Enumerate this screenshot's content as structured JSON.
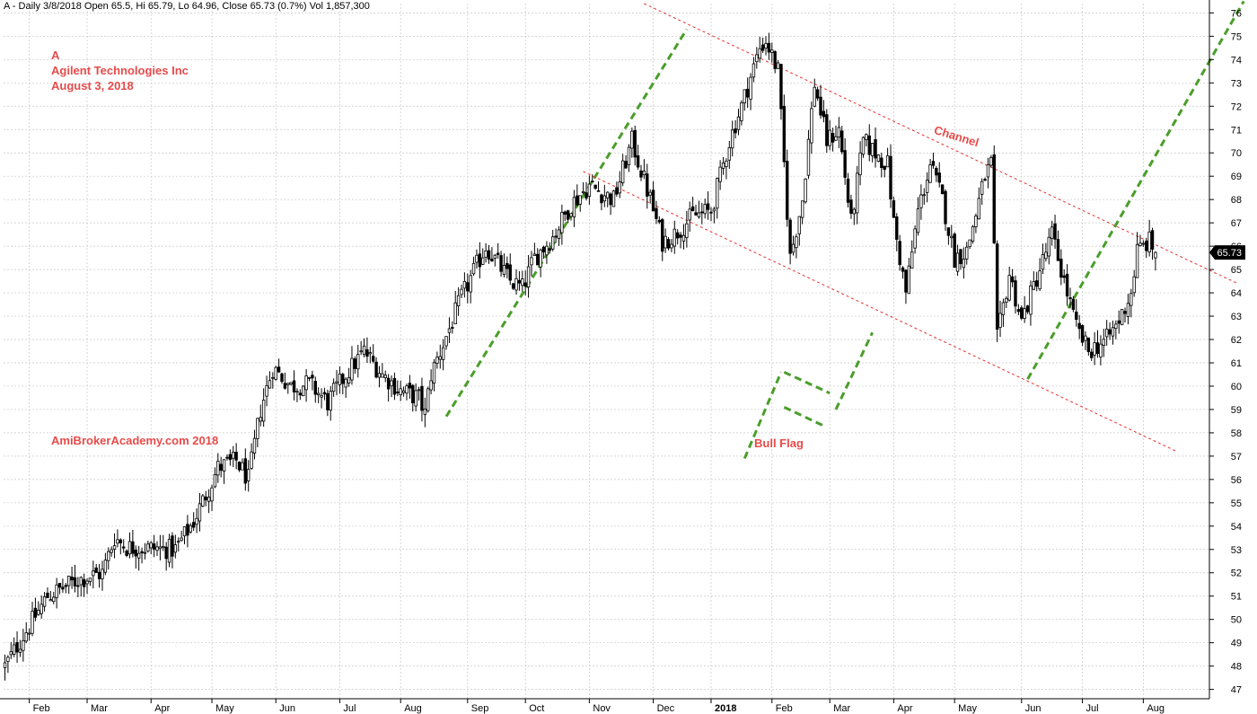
{
  "header": "A - Daily 3/8/2018 Open 65.5, Hi 65.79, Lo 64.96, Close 65.73 (0.7%) Vol 1,857,300",
  "notes": {
    "ticker": "A",
    "company": "Agilent Technologies Inc",
    "date": "August 3, 2018",
    "watermark": "AmiBrokerAcademy.com  2018"
  },
  "annotations": {
    "channel": "Channel",
    "bull_flag": "Bull Flag"
  },
  "last_price_label": "65.73",
  "colors": {
    "annotation_text": "#e84a4a",
    "trend_line": "#4a9e2a",
    "channel_line": "#e83030",
    "candle": "#000000",
    "grid": "#c8c8c8"
  },
  "chart_data": {
    "type": "candlestick",
    "ylim": [
      46.6,
      76.4
    ],
    "y_ticks": [
      47,
      48,
      49,
      50,
      51,
      52,
      53,
      54,
      55,
      56,
      57,
      58,
      59,
      60,
      61,
      62,
      63,
      64,
      65,
      66,
      67,
      68,
      69,
      70,
      71,
      72,
      73,
      74,
      75,
      76
    ],
    "x_months": [
      {
        "label": "Feb",
        "bar": 8
      },
      {
        "label": "Mar",
        "bar": 27
      },
      {
        "label": "Apr",
        "bar": 48
      },
      {
        "label": "May",
        "bar": 68
      },
      {
        "label": "Jun",
        "bar": 89
      },
      {
        "label": "Jul",
        "bar": 110
      },
      {
        "label": "Aug",
        "bar": 130
      },
      {
        "label": "Sep",
        "bar": 152
      },
      {
        "label": "Oct",
        "bar": 171
      },
      {
        "label": "Nov",
        "bar": 192
      },
      {
        "label": "Dec",
        "bar": 213
      },
      {
        "label": "2018",
        "bar": 232
      },
      {
        "label": "Feb",
        "bar": 252
      },
      {
        "label": "Mar",
        "bar": 271
      },
      {
        "label": "Apr",
        "bar": 292
      },
      {
        "label": "May",
        "bar": 312
      },
      {
        "label": "Jun",
        "bar": 334
      },
      {
        "label": "Jul",
        "bar": 354
      },
      {
        "label": "Aug",
        "bar": 374
      }
    ],
    "price_path": [
      [
        0,
        48
      ],
      [
        7,
        49.5
      ],
      [
        14,
        51
      ],
      [
        24,
        51.7
      ],
      [
        32,
        52
      ],
      [
        36,
        53.5
      ],
      [
        40,
        53.1
      ],
      [
        56,
        53
      ],
      [
        62,
        54.2
      ],
      [
        70,
        56.5
      ],
      [
        76,
        56.8
      ],
      [
        80,
        56
      ],
      [
        84,
        59
      ],
      [
        88,
        60.8
      ],
      [
        94,
        60
      ],
      [
        100,
        60.1
      ],
      [
        106,
        59.3
      ],
      [
        112,
        60.5
      ],
      [
        118,
        61.5
      ],
      [
        124,
        60.5
      ],
      [
        130,
        59.8
      ],
      [
        136,
        59.5
      ],
      [
        138,
        58.8
      ],
      [
        140,
        60.5
      ],
      [
        144,
        61.8
      ],
      [
        150,
        63.8
      ],
      [
        158,
        66
      ],
      [
        166,
        64.5
      ],
      [
        170,
        64.2
      ],
      [
        174,
        65.5
      ],
      [
        180,
        66.4
      ],
      [
        186,
        67.8
      ],
      [
        192,
        68.6
      ],
      [
        200,
        68
      ],
      [
        206,
        70.5
      ],
      [
        212,
        68
      ],
      [
        216,
        66.2
      ],
      [
        220,
        66.5
      ],
      [
        226,
        67.3
      ],
      [
        232,
        67.5
      ],
      [
        238,
        70.5
      ],
      [
        242,
        72
      ],
      [
        248,
        74.5
      ],
      [
        250,
        74.8
      ],
      [
        254,
        73.5
      ],
      [
        258,
        65.5
      ],
      [
        262,
        68
      ],
      [
        266,
        73
      ],
      [
        270,
        70.5
      ],
      [
        274,
        71
      ],
      [
        278,
        67
      ],
      [
        282,
        70.5
      ],
      [
        286,
        70
      ],
      [
        290,
        69.5
      ],
      [
        292,
        67
      ],
      [
        296,
        64
      ],
      [
        300,
        67.5
      ],
      [
        304,
        69.5
      ],
      [
        308,
        68
      ],
      [
        312,
        65.5
      ],
      [
        316,
        65.8
      ],
      [
        322,
        69
      ],
      [
        324,
        69.5
      ],
      [
        326,
        62
      ],
      [
        330,
        64.8
      ],
      [
        334,
        62.8
      ],
      [
        340,
        65
      ],
      [
        344,
        66.5
      ],
      [
        348,
        64.5
      ],
      [
        352,
        62.5
      ],
      [
        356,
        61.5
      ],
      [
        362,
        62
      ],
      [
        366,
        62.8
      ],
      [
        370,
        64
      ],
      [
        372,
        65.8
      ],
      [
        376,
        66.2
      ],
      [
        378,
        65.73
      ]
    ],
    "series": [
      {
        "name": "",
        "data": []
      }
    ],
    "drawn_lines": [
      {
        "style": "green-dashed",
        "from": [
          145,
          58.7
        ],
        "to": [
          224,
          75.3
        ]
      },
      {
        "style": "green-dashed",
        "from": [
          336,
          60.3
        ],
        "to": [
          407,
          76.5
        ]
      },
      {
        "style": "green-dashed",
        "from": [
          243,
          56.9
        ],
        "to": [
          255,
          60.6
        ]
      },
      {
        "style": "green-dashed",
        "from": [
          273,
          59
        ],
        "to": [
          285,
          62.3
        ]
      },
      {
        "style": "green-dashed",
        "from": [
          256,
          60.6
        ],
        "to": [
          271,
          59.7
        ]
      },
      {
        "style": "green-dashed",
        "from": [
          256,
          59.1
        ],
        "to": [
          269,
          58.3
        ]
      },
      {
        "style": "red-dotted",
        "from": [
          210,
          76.4
        ],
        "to": [
          405,
          64.4
        ]
      },
      {
        "style": "red-dotted",
        "from": [
          190,
          69.2
        ],
        "to": [
          385,
          57.2
        ]
      }
    ]
  }
}
